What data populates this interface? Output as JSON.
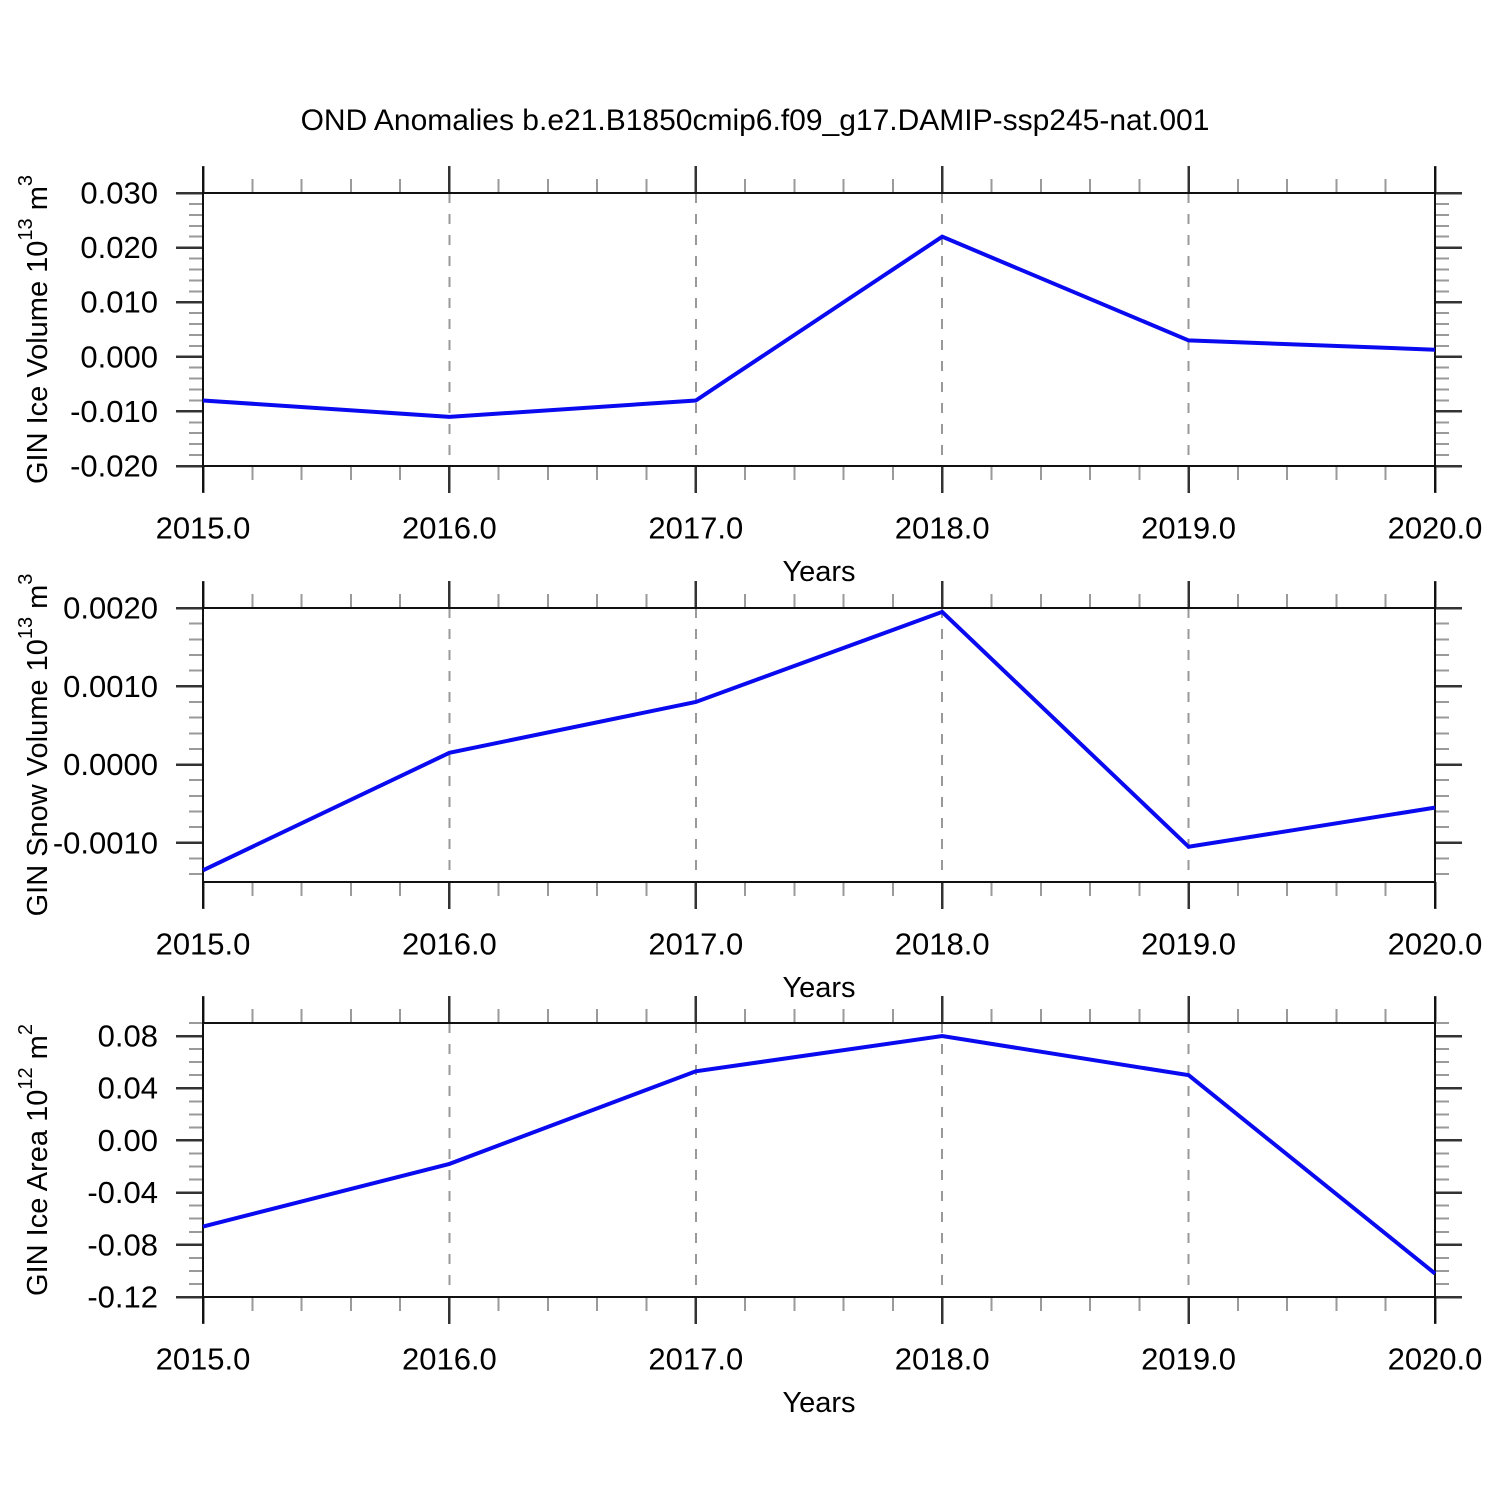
{
  "title": "OND Anomalies b.e21.B1850cmip6.f09_g17.DAMIP-ssp245-nat.001",
  "colors": {
    "line": "#0a0af0",
    "frame": "#111111",
    "grid": "#999999",
    "major_tick": "#333333",
    "minor_tick": "#9a9a9a",
    "background": "#ffffff",
    "text": "#000000"
  },
  "x_axis": {
    "label": "Years",
    "range": [
      2015,
      2020
    ],
    "tick_values": [
      2015,
      2016,
      2017,
      2018,
      2019,
      2020
    ],
    "tick_labels": [
      "2015.0",
      "2016.0",
      "2017.0",
      "2018.0",
      "2019.0",
      "2020.0"
    ],
    "minor_divisions": 5,
    "grid_at": [
      2016,
      2017,
      2018,
      2019
    ]
  },
  "chart_data": [
    {
      "type": "line",
      "ylabel_segments": [
        {
          "text": "GIN Ice Volume 10"
        },
        {
          "text": "13",
          "sup": true
        },
        {
          "text": " m"
        },
        {
          "text": "3",
          "sup": true
        }
      ],
      "xlabel": "Years",
      "x": [
        2015,
        2016,
        2017,
        2018,
        2019,
        2020
      ],
      "values": [
        -0.008,
        -0.011,
        -0.008,
        0.022,
        0.003,
        0.0013
      ],
      "ylim": [
        -0.02,
        0.03
      ],
      "ytick_values": [
        0.03,
        0.02,
        0.01,
        0.0,
        -0.01,
        -0.02
      ],
      "ytick_labels": [
        "0.030",
        "0.020",
        "0.010",
        "0.000",
        "-0.010",
        "-0.020"
      ],
      "y_minor_step": 0.002
    },
    {
      "type": "line",
      "ylabel_segments": [
        {
          "text": "GIN Snow Volume 10"
        },
        {
          "text": "13",
          "sup": true
        },
        {
          "text": " m"
        },
        {
          "text": "3",
          "sup": true
        }
      ],
      "xlabel": "Years",
      "x": [
        2015,
        2016,
        2017,
        2018,
        2019,
        2020
      ],
      "values": [
        -0.00135,
        0.00015,
        0.0008,
        0.00195,
        -0.00105,
        -0.00055
      ],
      "ylim": [
        -0.0015,
        0.002
      ],
      "ytick_values": [
        0.002,
        0.001,
        0.0,
        -0.001
      ],
      "ytick_labels": [
        "0.0020",
        "0.0010",
        "0.0000",
        "-0.0010"
      ],
      "y_minor_step": 0.0002
    },
    {
      "type": "line",
      "ylabel_segments": [
        {
          "text": "GIN Ice Area 10"
        },
        {
          "text": "12",
          "sup": true
        },
        {
          "text": " m"
        },
        {
          "text": "2",
          "sup": true
        }
      ],
      "xlabel": "Years",
      "x": [
        2015,
        2016,
        2017,
        2018,
        2019,
        2020
      ],
      "values": [
        -0.066,
        -0.018,
        0.053,
        0.08,
        0.05,
        -0.102
      ],
      "ylim": [
        -0.12,
        0.09
      ],
      "ytick_values": [
        0.08,
        0.04,
        0.0,
        -0.04,
        -0.08,
        -0.12
      ],
      "ytick_labels": [
        "0.08",
        "0.04",
        "0.00",
        "-0.04",
        "-0.08",
        "-0.12"
      ],
      "y_minor_step": 0.01
    }
  ]
}
